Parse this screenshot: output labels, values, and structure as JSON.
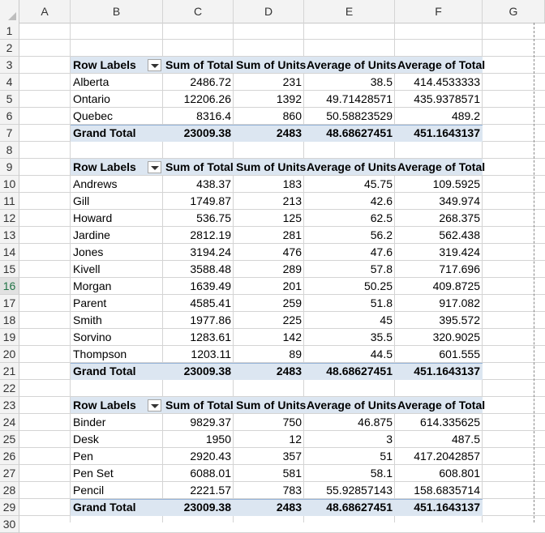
{
  "columns": [
    "A",
    "B",
    "C",
    "D",
    "E",
    "F",
    "G"
  ],
  "rows": [
    "1",
    "2",
    "3",
    "4",
    "5",
    "6",
    "7",
    "8",
    "9",
    "10",
    "11",
    "12",
    "13",
    "14",
    "15",
    "16",
    "17",
    "18",
    "19",
    "20",
    "21",
    "22",
    "23",
    "24",
    "25",
    "26",
    "27",
    "28",
    "29",
    "30"
  ],
  "selected_row": "16",
  "pivots": [
    {
      "headers": [
        "Row Labels",
        "Sum of Total",
        "Sum of Units",
        "Average of Units",
        "Average of Total"
      ],
      "rows": [
        [
          "Alberta",
          "2486.72",
          "231",
          "38.5",
          "414.4533333"
        ],
        [
          "Ontario",
          "12206.26",
          "1392",
          "49.71428571",
          "435.9378571"
        ],
        [
          "Quebec",
          "8316.4",
          "860",
          "50.58823529",
          "489.2"
        ]
      ],
      "total": [
        "Grand Total",
        "23009.38",
        "2483",
        "48.68627451",
        "451.1643137"
      ]
    },
    {
      "headers": [
        "Row Labels",
        "Sum of Total",
        "Sum of Units",
        "Average of Units",
        "Average of Total"
      ],
      "rows": [
        [
          "Andrews",
          "438.37",
          "183",
          "45.75",
          "109.5925"
        ],
        [
          "Gill",
          "1749.87",
          "213",
          "42.6",
          "349.974"
        ],
        [
          "Howard",
          "536.75",
          "125",
          "62.5",
          "268.375"
        ],
        [
          "Jardine",
          "2812.19",
          "281",
          "56.2",
          "562.438"
        ],
        [
          "Jones",
          "3194.24",
          "476",
          "47.6",
          "319.424"
        ],
        [
          "Kivell",
          "3588.48",
          "289",
          "57.8",
          "717.696"
        ],
        [
          "Morgan",
          "1639.49",
          "201",
          "50.25",
          "409.8725"
        ],
        [
          "Parent",
          "4585.41",
          "259",
          "51.8",
          "917.082"
        ],
        [
          "Smith",
          "1977.86",
          "225",
          "45",
          "395.572"
        ],
        [
          "Sorvino",
          "1283.61",
          "142",
          "35.5",
          "320.9025"
        ],
        [
          "Thompson",
          "1203.11",
          "89",
          "44.5",
          "601.555"
        ]
      ],
      "total": [
        "Grand Total",
        "23009.38",
        "2483",
        "48.68627451",
        "451.1643137"
      ]
    },
    {
      "headers": [
        "Row Labels",
        "Sum of Total",
        "Sum of Units",
        "Average of Units",
        "Average of Total"
      ],
      "rows": [
        [
          "Binder",
          "9829.37",
          "750",
          "46.875",
          "614.335625"
        ],
        [
          "Desk",
          "1950",
          "12",
          "3",
          "487.5"
        ],
        [
          "Pen",
          "2920.43",
          "357",
          "51",
          "417.2042857"
        ],
        [
          "Pen Set",
          "6088.01",
          "581",
          "58.1",
          "608.801"
        ],
        [
          "Pencil",
          "2221.57",
          "783",
          "55.92857143",
          "158.6835714"
        ]
      ],
      "total": [
        "Grand Total",
        "23009.38",
        "2483",
        "48.68627451",
        "451.1643137"
      ]
    }
  ]
}
